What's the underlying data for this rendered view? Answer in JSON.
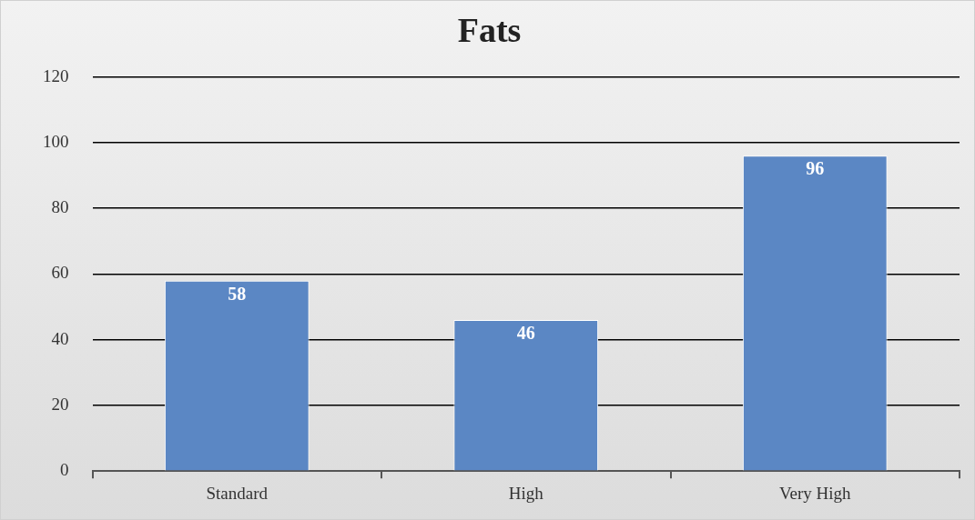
{
  "chart_data": {
    "type": "bar",
    "title": "Fats",
    "categories": [
      "Standard",
      "High",
      "Very High"
    ],
    "values": [
      58,
      46,
      96
    ],
    "color": "#5b87c4",
    "ylim": [
      0,
      120
    ],
    "yticks": [
      0,
      20,
      40,
      60,
      80,
      100,
      120
    ],
    "grid": "y",
    "data_labels": true,
    "legend": false
  }
}
